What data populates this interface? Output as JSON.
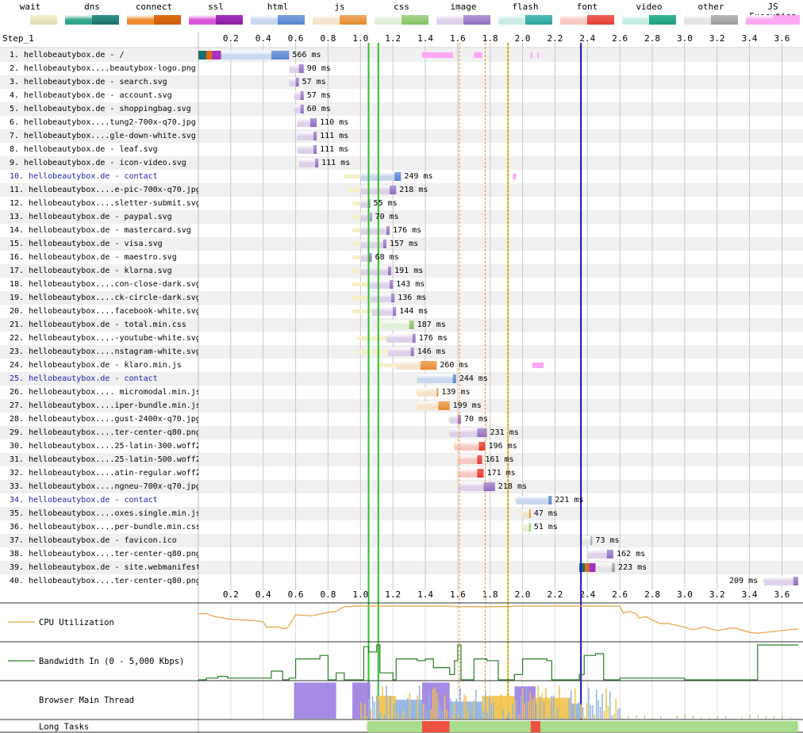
{
  "legend": [
    {
      "label": "wait",
      "c1": "#fff",
      "c2": "#f4f1c8",
      "grad": "#dedab2"
    },
    {
      "label": "dns",
      "c1": "#33a68d",
      "c2": "#2f9488",
      "grad": "#1c6f68"
    },
    {
      "label": "connect",
      "c1": "#f08a2c",
      "c2": "#e06d10",
      "grad": "#c75d0c"
    },
    {
      "label": "ssl",
      "c1": "#d955d9",
      "c2": "#a72fc2",
      "grad": "#8a1f9e"
    },
    {
      "label": "html",
      "c1": "#c8d7ef",
      "c2": "#7aa1dd",
      "grad": "#5b86d0"
    },
    {
      "label": "js",
      "c1": "#f5e2cc",
      "c2": "#f0ab67",
      "grad": "#e48b31"
    },
    {
      "label": "css",
      "c1": "#e0f0d9",
      "c2": "#a9d68e",
      "grad": "#86c164"
    },
    {
      "label": "image",
      "c1": "#ddd1ea",
      "c2": "#b29ad6",
      "grad": "#8e6cc2"
    },
    {
      "label": "flash",
      "c1": "#c9ece8",
      "c2": "#4fbcb4",
      "grad": "#2ea49b"
    },
    {
      "label": "font",
      "c1": "#f8c8c3",
      "c2": "#f0605a",
      "grad": "#e43d33"
    },
    {
      "label": "video",
      "c1": "#c6ebe2",
      "c2": "#35b796",
      "grad": "#1f9d7d"
    },
    {
      "label": "other",
      "c1": "#e4e4e4",
      "c2": "#bbbbbb",
      "grad": "#9a9a9a"
    },
    {
      "label": "JS Execution",
      "c1": "#fca8f2",
      "c2": "#fca8f2",
      "grad": "#fca8f2"
    }
  ],
  "step_title": "Step_1",
  "ticks": [
    "0.2",
    "0.4",
    "0.6",
    "0.8",
    "1.0",
    "1.2",
    "1.4",
    "1.6",
    "1.8",
    "2.0",
    "2.2",
    "2.4",
    "2.6",
    "2.8",
    "3.0",
    "3.2",
    "3.4",
    "3.6"
  ],
  "requests": [
    {
      "label": "1. hellobeautybox.de - /",
      "type": "html",
      "doc": false,
      "wait": [
        0.0,
        0.0
      ],
      "conn": [
        0.0,
        0.14
      ],
      "ttfb": [
        0.14,
        0.45
      ],
      "dl": [
        0.45,
        0.56
      ],
      "dur": "566 ms"
    },
    {
      "label": "2. hellobeautybox....beautybox-logo.png",
      "type": "image",
      "doc": false,
      "wait": [
        0.56,
        0.56
      ],
      "ttfb": [
        0.56,
        0.62
      ],
      "dl": [
        0.62,
        0.65
      ],
      "dur": "90 ms"
    },
    {
      "label": "3. hellobeautybox.de - search.svg",
      "type": "image",
      "doc": false,
      "wait": [
        0.56,
        0.56
      ],
      "ttfb": [
        0.56,
        0.6
      ],
      "dl": [
        0.6,
        0.62
      ],
      "dur": "57 ms"
    },
    {
      "label": "4. hellobeautybox.de - account.svg",
      "type": "image",
      "doc": false,
      "wait": [
        0.59,
        0.59
      ],
      "ttfb": [
        0.59,
        0.63
      ],
      "dl": [
        0.63,
        0.65
      ],
      "dur": "57 ms"
    },
    {
      "label": "5. hellobeautybox.de - shoppingbag.svg",
      "type": "image",
      "doc": false,
      "wait": [
        0.59,
        0.59
      ],
      "ttfb": [
        0.59,
        0.63
      ],
      "dl": [
        0.63,
        0.65
      ],
      "dur": "60 ms"
    },
    {
      "label": "6. hellobeautybox....tung2-700x-q70.jpg",
      "type": "image",
      "doc": false,
      "wait": [
        0.61,
        0.61
      ],
      "ttfb": [
        0.61,
        0.69
      ],
      "dl": [
        0.69,
        0.73
      ],
      "dur": "110 ms"
    },
    {
      "label": "7. hellobeautybox....gle-down-white.svg",
      "type": "image",
      "doc": false,
      "wait": [
        0.61,
        0.61
      ],
      "ttfb": [
        0.61,
        0.71
      ],
      "dl": [
        0.71,
        0.73
      ],
      "dur": "111 ms"
    },
    {
      "label": "8. hellobeautybox.de - leaf.svg",
      "type": "image",
      "doc": false,
      "wait": [
        0.61,
        0.61
      ],
      "ttfb": [
        0.61,
        0.71
      ],
      "dl": [
        0.71,
        0.73
      ],
      "dur": "111 ms"
    },
    {
      "label": "9. hellobeautybox.de - icon-video.svg",
      "type": "image",
      "doc": false,
      "wait": [
        0.62,
        0.62
      ],
      "ttfb": [
        0.62,
        0.72
      ],
      "dl": [
        0.72,
        0.74
      ],
      "dur": "111 ms"
    },
    {
      "label": "10. hellobeautybox.de - contact",
      "type": "html",
      "doc": true,
      "wait": [
        0.9,
        1.0
      ],
      "ttfb": [
        1.0,
        1.21
      ],
      "dl": [
        1.21,
        1.25
      ],
      "dur": "249 ms"
    },
    {
      "label": "11. hellobeautybox....e-pic-700x-q70.jpg",
      "type": "image",
      "doc": false,
      "wait": [
        0.92,
        1.0
      ],
      "ttfb": [
        1.0,
        1.18
      ],
      "dl": [
        1.18,
        1.22
      ],
      "dur": "218 ms"
    },
    {
      "label": "12. hellobeautybox....sletter-submit.svg",
      "type": "image",
      "doc": false,
      "wait": [
        0.95,
        1.0
      ],
      "ttfb": [
        1.0,
        1.05
      ],
      "dl": [
        1.05,
        1.06
      ],
      "dur": "55 ms"
    },
    {
      "label": "13. hellobeautybox.de - paypal.svg",
      "type": "image",
      "doc": false,
      "wait": [
        0.95,
        1.0
      ],
      "ttfb": [
        1.0,
        1.06
      ],
      "dl": [
        1.06,
        1.07
      ],
      "dur": "70 ms"
    },
    {
      "label": "14. hellobeautybox.de - mastercard.svg",
      "type": "image",
      "doc": false,
      "wait": [
        0.95,
        1.0
      ],
      "ttfb": [
        1.0,
        1.16
      ],
      "dl": [
        1.16,
        1.18
      ],
      "dur": "176 ms"
    },
    {
      "label": "15. hellobeautybox.de - visa.svg",
      "type": "image",
      "doc": false,
      "wait": [
        0.95,
        1.0
      ],
      "ttfb": [
        1.0,
        1.14
      ],
      "dl": [
        1.14,
        1.16
      ],
      "dur": "157 ms"
    },
    {
      "label": "16. hellobeautybox.de - maestro.svg",
      "type": "image",
      "doc": false,
      "wait": [
        0.95,
        1.0
      ],
      "ttfb": [
        1.0,
        1.05
      ],
      "dl": [
        1.05,
        1.07
      ],
      "dur": "68 ms"
    },
    {
      "label": "17. hellobeautybox.de - klarna.svg",
      "type": "image",
      "doc": false,
      "wait": [
        0.95,
        1.0
      ],
      "ttfb": [
        1.0,
        1.17
      ],
      "dl": [
        1.17,
        1.19
      ],
      "dur": "191 ms"
    },
    {
      "label": "18. hellobeautybox....con-close-dark.svg",
      "type": "image",
      "doc": false,
      "wait": [
        0.95,
        1.05
      ],
      "ttfb": [
        1.05,
        1.18
      ],
      "dl": [
        1.18,
        1.2
      ],
      "dur": "143 ms"
    },
    {
      "label": "19. hellobeautybox....ck-circle-dark.svg",
      "type": "image",
      "doc": false,
      "wait": [
        0.95,
        1.06
      ],
      "ttfb": [
        1.06,
        1.19
      ],
      "dl": [
        1.19,
        1.21
      ],
      "dur": "136 ms"
    },
    {
      "label": "20. hellobeautybox....facebook-white.svg",
      "type": "image",
      "doc": false,
      "wait": [
        0.95,
        1.07
      ],
      "ttfb": [
        1.07,
        1.2
      ],
      "dl": [
        1.2,
        1.22
      ],
      "dur": "144 ms"
    },
    {
      "label": "21. hellobeautybox.de - total.min.css",
      "type": "css",
      "doc": false,
      "wait": [
        1.1,
        1.13
      ],
      "ttfb": [
        1.13,
        1.3
      ],
      "dl": [
        1.3,
        1.33
      ],
      "dur": "187 ms"
    },
    {
      "label": "22. hellobeautybox....-youtube-white.svg",
      "type": "image",
      "doc": false,
      "wait": [
        0.98,
        1.16
      ],
      "ttfb": [
        1.16,
        1.32
      ],
      "dl": [
        1.32,
        1.34
      ],
      "dur": "176 ms"
    },
    {
      "label": "23. hellobeautybox....nstagram-white.svg",
      "type": "image",
      "doc": false,
      "wait": [
        0.98,
        1.17
      ],
      "ttfb": [
        1.17,
        1.31
      ],
      "dl": [
        1.31,
        1.33
      ],
      "dur": "146 ms"
    },
    {
      "label": "24. hellobeautybox.de - klaro.min.js",
      "type": "js",
      "doc": false,
      "wait": [
        1.1,
        1.22
      ],
      "ttfb": [
        1.22,
        1.37
      ],
      "dl": [
        1.37,
        1.47
      ],
      "dur": "260 ms"
    },
    {
      "label": "25. hellobeautybox.de - contact",
      "type": "html",
      "doc": true,
      "wait": [
        1.34,
        1.35
      ],
      "ttfb": [
        1.35,
        1.57
      ],
      "dl": [
        1.57,
        1.59
      ],
      "dur": "244 ms"
    },
    {
      "label": "26. hellobeautybox.... micromodal.min.js",
      "type": "js",
      "doc": false,
      "wait": [
        1.34,
        1.35
      ],
      "ttfb": [
        1.35,
        1.47
      ],
      "dl": [
        1.47,
        1.48
      ],
      "dur": "139 ms"
    },
    {
      "label": "27. hellobeautybox....iper-bundle.min.js",
      "type": "js",
      "doc": false,
      "wait": [
        1.34,
        1.35
      ],
      "ttfb": [
        1.35,
        1.48
      ],
      "dl": [
        1.48,
        1.55
      ],
      "dur": "199 ms"
    },
    {
      "label": "28. hellobeautybox....gust-2400x-q70.jpg",
      "type": "image",
      "doc": false,
      "wait": [
        1.54,
        1.55
      ],
      "ttfb": [
        1.55,
        1.6
      ],
      "dl": [
        1.6,
        1.62
      ],
      "dur": "70 ms"
    },
    {
      "label": "29. hellobeautybox....ter-center-q80.png",
      "type": "image",
      "doc": false,
      "wait": [
        1.54,
        1.55
      ],
      "ttfb": [
        1.55,
        1.72
      ],
      "dl": [
        1.72,
        1.78
      ],
      "dur": "231 ms"
    },
    {
      "label": "30. hellobeautybox....25-latin-300.woff2",
      "type": "font",
      "doc": false,
      "wait": [
        1.57,
        1.58
      ],
      "ttfb": [
        1.58,
        1.73
      ],
      "dl": [
        1.73,
        1.77
      ],
      "dur": "196 ms"
    },
    {
      "label": "31. hellobeautybox....25-latin-500.woff2",
      "type": "font",
      "doc": false,
      "wait": [
        1.59,
        1.6
      ],
      "ttfb": [
        1.6,
        1.72
      ],
      "dl": [
        1.72,
        1.75
      ],
      "dur": "161 ms"
    },
    {
      "label": "32. hellobeautybox....atin-regular.woff2",
      "type": "font",
      "doc": false,
      "wait": [
        1.59,
        1.6
      ],
      "ttfb": [
        1.6,
        1.72
      ],
      "dl": [
        1.72,
        1.76
      ],
      "dur": "171 ms"
    },
    {
      "label": "33. hellobeautybox....ngneu-700x-q70.jpg",
      "type": "image",
      "doc": false,
      "wait": [
        1.59,
        1.6
      ],
      "ttfb": [
        1.6,
        1.76
      ],
      "dl": [
        1.76,
        1.83
      ],
      "dur": "218 ms"
    },
    {
      "label": "34. hellobeautybox.de - contact",
      "type": "html",
      "doc": true,
      "wait": [
        1.95,
        1.96
      ],
      "ttfb": [
        1.96,
        2.16
      ],
      "dl": [
        2.16,
        2.18
      ],
      "dur": "221 ms"
    },
    {
      "label": "35. hellobeautybox....oxes.single.min.js",
      "type": "js",
      "doc": false,
      "wait": [
        1.99,
        2.0
      ],
      "ttfb": [
        2.0,
        2.04
      ],
      "dl": [
        2.04,
        2.05
      ],
      "dur": "47 ms"
    },
    {
      "label": "36. hellobeautybox....per-bundle.min.css",
      "type": "css",
      "doc": false,
      "wait": [
        1.99,
        2.0
      ],
      "ttfb": [
        2.0,
        2.04
      ],
      "dl": [
        2.04,
        2.05
      ],
      "dur": "51 ms"
    },
    {
      "label": "37. hellobeautybox.de - favicon.ico",
      "type": "other",
      "doc": false,
      "wait": [
        2.35,
        2.36
      ],
      "ttfb": [
        2.36,
        2.42
      ],
      "dl": [
        2.42,
        2.43
      ],
      "dur": "73 ms"
    },
    {
      "label": "38. hellobeautybox....ter-center-q80.png",
      "type": "image",
      "doc": false,
      "wait": [
        2.39,
        2.4
      ],
      "ttfb": [
        2.4,
        2.52
      ],
      "dl": [
        2.52,
        2.56
      ],
      "dur": "162 ms"
    },
    {
      "label": "39. hellobeautybox.de - site.webmanifest",
      "type": "other",
      "doc": false,
      "wait": [
        2.35,
        2.35
      ],
      "conn": [
        2.35,
        2.45
      ],
      "ttfb": [
        2.45,
        2.55
      ],
      "dl": [
        2.55,
        2.57
      ],
      "dur": "223 ms"
    },
    {
      "label": "40. hellobeautybox....ter-center-q80.png",
      "type": "image",
      "doc": false,
      "wait": [
        3.48,
        3.49
      ],
      "ttfb": [
        3.49,
        3.67
      ],
      "dl": [
        3.67,
        3.7
      ],
      "dur": "209 ms",
      "durLeft": true
    }
  ],
  "markers": [
    {
      "t": 1.05,
      "color": "#28c228",
      "w": 2
    },
    {
      "t": 1.11,
      "color": "#28c228",
      "w": 2
    },
    {
      "t": 1.61,
      "color": "#f08a2c",
      "w": 1,
      "dash": true
    },
    {
      "t": 1.77,
      "color": "#f08a2c",
      "w": 1,
      "dash": true
    },
    {
      "t": 1.91,
      "color": "#f08a2c",
      "w": 2,
      "dash": true
    },
    {
      "t": 1.91,
      "color": "#c8b400",
      "w": 1
    },
    {
      "t": 2.36,
      "color": "#1414b4",
      "w": 2
    }
  ],
  "js_exec": [
    {
      "row": 0,
      "spans": [
        [
          1.38,
          1.57
        ],
        [
          1.7,
          1.75
        ],
        [
          2.05,
          2.06
        ],
        [
          2.09,
          2.1
        ]
      ]
    },
    {
      "row": 9,
      "spans": [
        [
          1.94,
          1.96
        ]
      ]
    },
    {
      "row": 23,
      "spans": [
        [
          2.06,
          2.13
        ]
      ]
    }
  ],
  "sections": [
    {
      "label": "CPU Utilization",
      "legend_color": "#e8a040"
    },
    {
      "label": "Bandwidth In (0 - 5,000 Kbps)",
      "legend_color": "#2a7a2a"
    },
    {
      "label": "Browser Main Thread"
    },
    {
      "label": "Long Tasks"
    }
  ],
  "cpu": [
    [
      0,
      78
    ],
    [
      0.05,
      78
    ],
    [
      0.1,
      70
    ],
    [
      0.2,
      62
    ],
    [
      0.3,
      60
    ],
    [
      0.4,
      55
    ],
    [
      0.42,
      40
    ],
    [
      0.5,
      40
    ],
    [
      0.52,
      35
    ],
    [
      0.55,
      38
    ],
    [
      0.58,
      60
    ],
    [
      0.6,
      75
    ],
    [
      0.7,
      72
    ],
    [
      0.8,
      82
    ],
    [
      0.85,
      85
    ],
    [
      0.9,
      98
    ],
    [
      1.0,
      100
    ],
    [
      1.5,
      100
    ],
    [
      1.55,
      100
    ],
    [
      1.6,
      98
    ],
    [
      1.8,
      98
    ],
    [
      2.0,
      100
    ],
    [
      2.6,
      100
    ],
    [
      2.62,
      80
    ],
    [
      2.66,
      85
    ],
    [
      2.7,
      78
    ],
    [
      2.72,
      65
    ],
    [
      2.76,
      70
    ],
    [
      2.8,
      60
    ],
    [
      2.85,
      50
    ],
    [
      2.9,
      50
    ],
    [
      3.0,
      40
    ],
    [
      3.05,
      32
    ],
    [
      3.12,
      40
    ],
    [
      3.2,
      30
    ],
    [
      3.3,
      38
    ],
    [
      3.4,
      25
    ],
    [
      3.45,
      22
    ],
    [
      3.6,
      30
    ],
    [
      3.7,
      35
    ]
  ],
  "bw": [
    [
      0,
      0
    ],
    [
      0.05,
      5
    ],
    [
      0.12,
      10
    ],
    [
      0.18,
      5
    ],
    [
      0.4,
      5
    ],
    [
      0.45,
      25
    ],
    [
      0.52,
      0
    ],
    [
      0.56,
      5
    ],
    [
      0.6,
      60
    ],
    [
      0.75,
      70
    ],
    [
      0.8,
      0
    ],
    [
      0.85,
      20
    ],
    [
      0.9,
      0
    ],
    [
      1.0,
      0
    ],
    [
      1.02,
      95
    ],
    [
      1.05,
      80
    ],
    [
      1.1,
      100
    ],
    [
      1.12,
      20
    ],
    [
      1.2,
      0
    ],
    [
      1.22,
      60
    ],
    [
      1.35,
      55
    ],
    [
      1.4,
      60
    ],
    [
      1.45,
      35
    ],
    [
      1.55,
      15
    ],
    [
      1.58,
      55
    ],
    [
      1.6,
      100
    ],
    [
      1.62,
      0
    ],
    [
      1.7,
      60
    ],
    [
      1.78,
      55
    ],
    [
      1.85,
      0
    ],
    [
      1.95,
      15
    ],
    [
      2.0,
      60
    ],
    [
      2.15,
      55
    ],
    [
      2.18,
      0
    ],
    [
      2.3,
      0
    ],
    [
      2.35,
      15
    ],
    [
      2.38,
      70
    ],
    [
      2.45,
      75
    ],
    [
      2.5,
      0
    ],
    [
      2.6,
      5
    ],
    [
      2.8,
      5
    ],
    [
      3.0,
      0
    ],
    [
      3.4,
      0
    ],
    [
      3.45,
      100
    ],
    [
      3.7,
      100
    ]
  ],
  "long_tasks": [
    {
      "s": 1.04,
      "e": 1.38,
      "c": "#a8dc8c"
    },
    {
      "s": 1.38,
      "e": 1.55,
      "c": "#ee5040"
    },
    {
      "s": 1.55,
      "e": 2.05,
      "c": "#a8dc8c"
    },
    {
      "s": 2.05,
      "e": 2.11,
      "c": "#ee5040"
    },
    {
      "s": 2.11,
      "e": 3.7,
      "c": "#a8dc8c"
    }
  ]
}
